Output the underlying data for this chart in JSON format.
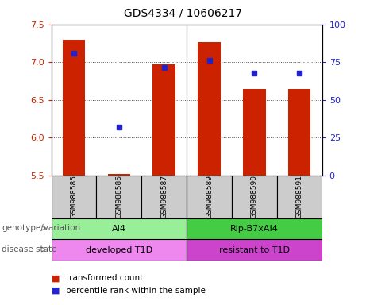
{
  "title": "GDS4334 / 10606217",
  "samples": [
    "GSM988585",
    "GSM988586",
    "GSM988587",
    "GSM988589",
    "GSM988590",
    "GSM988591"
  ],
  "bar_values": [
    7.3,
    5.52,
    6.97,
    7.27,
    6.65,
    6.65
  ],
  "bar_bottom": 5.5,
  "percentile_values": [
    7.12,
    6.14,
    6.93,
    7.02,
    6.85,
    6.85
  ],
  "ylim": [
    5.5,
    7.5
  ],
  "y2lim": [
    0,
    100
  ],
  "yticks": [
    5.5,
    6.0,
    6.5,
    7.0,
    7.5
  ],
  "y2ticks": [
    0,
    25,
    50,
    75,
    100
  ],
  "bar_color": "#cc2200",
  "dot_color": "#2222cc",
  "title_fontsize": 10,
  "groups": [
    {
      "label": "AI4",
      "start": 0,
      "end": 3,
      "color": "#99ee99"
    },
    {
      "label": "Rip-B7xAI4",
      "start": 3,
      "end": 6,
      "color": "#44cc44"
    }
  ],
  "disease": [
    {
      "label": "developed T1D",
      "start": 0,
      "end": 3,
      "color": "#ee88ee"
    },
    {
      "label": "resistant to T1D",
      "start": 3,
      "end": 6,
      "color": "#cc44cc"
    }
  ],
  "genotype_label": "genotype/variation",
  "disease_label": "disease state",
  "legend_items": [
    {
      "label": "transformed count",
      "color": "#cc2200"
    },
    {
      "label": "percentile rank within the sample",
      "color": "#2222cc"
    }
  ],
  "sample_box_color": "#cccccc",
  "bar_width": 0.5,
  "group_divider": 2.5
}
